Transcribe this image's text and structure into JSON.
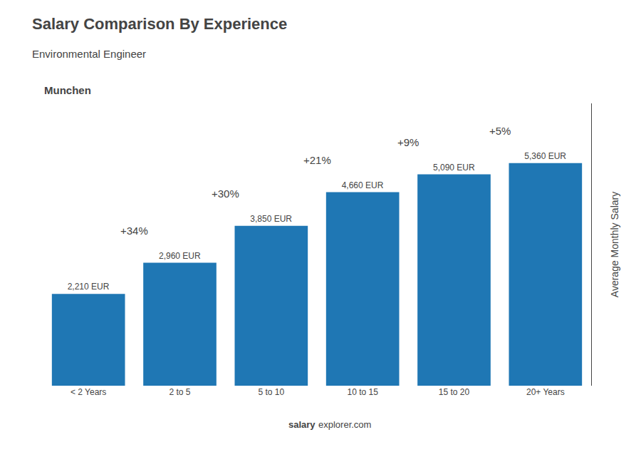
{
  "chart_data": {
    "type": "bar",
    "title": "Salary Comparison By Experience",
    "subtitle": "Environmental Engineer",
    "city": "Munchen",
    "ylabel": "Average Monthly Salary",
    "categories": [
      "< 2 Years",
      "2 to 5",
      "5 to 10",
      "10 to 15",
      "15 to 20",
      "20+ Years"
    ],
    "values": [
      2210,
      2960,
      3850,
      4660,
      5090,
      5360
    ],
    "value_labels": [
      "2,210 EUR",
      "2,960 EUR",
      "3,850 EUR",
      "4,660 EUR",
      "5,090 EUR",
      "5,360 EUR"
    ],
    "data_labels": true,
    "annotations": [
      {
        "from": "< 2 Years",
        "to": "2 to 5",
        "text": "+34%"
      },
      {
        "from": "2 to 5",
        "to": "5 to 10",
        "text": "+30%"
      },
      {
        "from": "5 to 10",
        "to": "10 to 15",
        "text": "+21%"
      },
      {
        "from": "10 to 15",
        "to": "15 to 20",
        "text": "+9%"
      },
      {
        "from": "15 to 20",
        "to": "20+ Years",
        "text": "+5%"
      }
    ],
    "footer": [
      "salary",
      "explorer.com"
    ],
    "ylim": [
      0,
      6800
    ],
    "tick_labels": "x",
    "grid": false
  }
}
